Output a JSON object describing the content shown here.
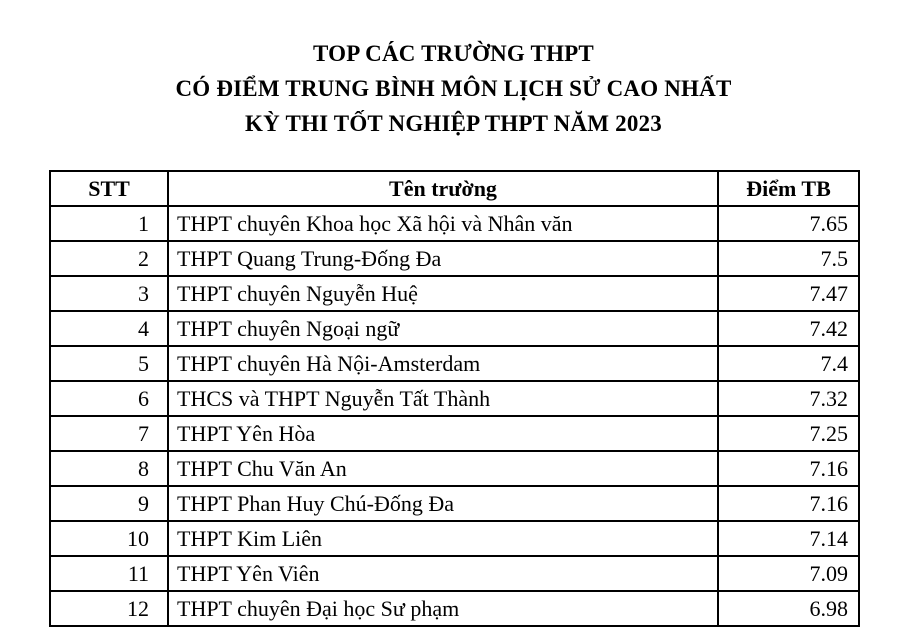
{
  "title": {
    "line1": "TOP CÁC TRƯỜNG THPT",
    "line2": "CÓ ĐIỂM TRUNG BÌNH MÔN LỊCH SỬ CAO NHẤT",
    "line3": "KỲ THI TỐT NGHIỆP THPT NĂM 2023"
  },
  "table": {
    "headers": [
      "STT",
      "Tên trường",
      "Điểm TB"
    ],
    "rows": [
      {
        "stt": "1",
        "school": "THPT chuyên Khoa học Xã hội và Nhân văn",
        "score": "7.65"
      },
      {
        "stt": "2",
        "school": "THPT Quang Trung-Đống Đa",
        "score": "7.5"
      },
      {
        "stt": "3",
        "school": "THPT chuyên Nguyễn Huệ",
        "score": "7.47"
      },
      {
        "stt": "4",
        "school": "THPT chuyên Ngoại ngữ",
        "score": "7.42"
      },
      {
        "stt": "5",
        "school": "THPT chuyên Hà Nội-Amsterdam",
        "score": "7.4"
      },
      {
        "stt": "6",
        "school": "THCS và THPT Nguyễn Tất Thành",
        "score": "7.32"
      },
      {
        "stt": "7",
        "school": "THPT Yên Hòa",
        "score": "7.25"
      },
      {
        "stt": "8",
        "school": "THPT Chu Văn An",
        "score": "7.16"
      },
      {
        "stt": "9",
        "school": "THPT Phan Huy Chú-Đống Đa",
        "score": "7.16"
      },
      {
        "stt": "10",
        "school": "THPT Kim Liên",
        "score": "7.14"
      },
      {
        "stt": "11",
        "school": "THPT Yên Viên",
        "score": "7.09"
      },
      {
        "stt": "12",
        "school": "THPT chuyên Đại học Sư phạm",
        "score": "6.98"
      }
    ]
  },
  "colors": {
    "text": "#000000",
    "border": "#000000",
    "background": "#ffffff"
  },
  "chart_data": {
    "type": "table",
    "title": "TOP CÁC TRƯỜNG THPT CÓ ĐIỂM TRUNG BÌNH MÔN LỊCH SỬ CAO NHẤT KỲ THI TỐT NGHIỆP THPT NĂM 2023",
    "columns": [
      "STT",
      "Tên trường",
      "Điểm TB"
    ],
    "categories": [
      "THPT chuyên Khoa học Xã hội và Nhân văn",
      "THPT Quang Trung-Đống Đa",
      "THPT chuyên Nguyễn Huệ",
      "THPT chuyên Ngoại ngữ",
      "THPT chuyên Hà Nội-Amsterdam",
      "THCS và THPT Nguyễn Tất Thành",
      "THPT Yên Hòa",
      "THPT Chu Văn An",
      "THPT Phan Huy Chú-Đống Đa",
      "THPT Kim Liên",
      "THPT Yên Viên",
      "THPT chuyên Đại học Sư phạm"
    ],
    "values": [
      7.65,
      7.5,
      7.47,
      7.42,
      7.4,
      7.32,
      7.25,
      7.16,
      7.16,
      7.14,
      7.09,
      6.98
    ]
  }
}
